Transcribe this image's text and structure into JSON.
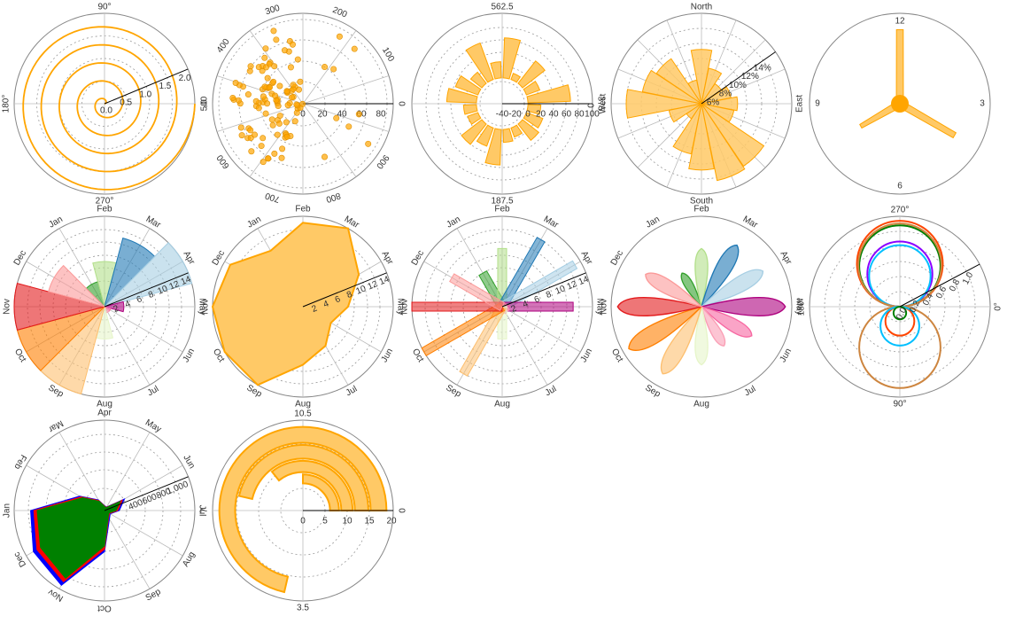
{
  "colors": {
    "orange": "#FFA500",
    "orange_fill": "#FFC966",
    "frame": "#888888",
    "grid": "#9A9A9A",
    "spoke": "#BBBBBB",
    "month_palette": [
      "#E31A1C",
      "#FB9A99",
      "#33A02C",
      "#B2DF8A",
      "#1F78B4",
      "#A6CEE3",
      "#AE017E",
      "#F768A1",
      "#FA9FB5",
      "#E6F5C9",
      "#FDBF6F",
      "#FF7F00"
    ]
  },
  "charts": [
    {
      "id": "spiral",
      "type": "line",
      "angle_labels": [
        "90°",
        "180°",
        "270°",
        "0°"
      ],
      "radial_ticks": [
        "0.0",
        "0.5",
        "1.0",
        "1.5",
        "2.0"
      ],
      "radial_max": 2.0,
      "series": [
        {
          "theta_deg_start": 0,
          "theta_deg_end": 1800,
          "r_start": 0.0,
          "r_end": 2.0
        }
      ]
    },
    {
      "id": "scatter",
      "type": "scatter",
      "angle_labels": [
        "100",
        "200",
        "300",
        "400",
        "500",
        "600",
        "700",
        "800",
        "900",
        "0"
      ],
      "radial_ticks": [
        "0",
        "20",
        "40",
        "60",
        "80"
      ],
      "radial_max": 90,
      "point_count": 110
    },
    {
      "id": "bars-donut",
      "type": "bar",
      "angle_labels": [
        "562.5",
        "375",
        "187.5",
        "0"
      ],
      "radial_ticks": [
        "-40",
        "-20",
        "0",
        "20",
        "40",
        "60",
        "80",
        "100"
      ],
      "radial_min": -40,
      "radial_max": 100,
      "values": [
        62,
        10,
        44,
        22,
        66,
        20,
        27,
        32,
        15,
        20,
        55,
        30,
        40,
        17,
        20,
        46,
        37,
        22,
        60,
        25
      ]
    },
    {
      "id": "wind-rose",
      "type": "bar",
      "angle_labels": [
        "North",
        "East",
        "South",
        "West"
      ],
      "radial_ticks": [
        "6%",
        "8%",
        "10%",
        "12%",
        "14%"
      ],
      "radial_max": 15,
      "sectors": [
        {
          "direction": 0,
          "value": 9
        },
        {
          "direction": 22.5,
          "value": 6
        },
        {
          "direction": 45,
          "value": 4
        },
        {
          "direction": 67.5,
          "value": 5
        },
        {
          "direction": 90,
          "value": 6
        },
        {
          "direction": 112.5,
          "value": 5.5
        },
        {
          "direction": 135,
          "value": 12.5
        },
        {
          "direction": 157.5,
          "value": 13
        },
        {
          "direction": 180,
          "value": 11
        },
        {
          "direction": 202.5,
          "value": 8.5
        },
        {
          "direction": 225,
          "value": 3
        },
        {
          "direction": 247.5,
          "value": 5.5
        },
        {
          "direction": 270,
          "value": 12.5
        },
        {
          "direction": 292.5,
          "value": 10
        },
        {
          "direction": 315,
          "value": 9
        },
        {
          "direction": 337.5,
          "value": 4
        }
      ]
    },
    {
      "id": "clock",
      "type": "bar",
      "angle_labels": [
        "12",
        "3",
        "6",
        "9"
      ],
      "hands": [
        {
          "hour": 0,
          "length": 0.82
        },
        {
          "hour": 4,
          "length": 0.7
        },
        {
          "hour": 8,
          "length": 0.5
        }
      ]
    },
    {
      "id": "months-bars",
      "type": "bar",
      "angle_labels": [
        "Jan",
        "Feb",
        "Mar",
        "Apr",
        "May",
        "Jun",
        "Jul",
        "Aug",
        "Sep",
        "Oct",
        "Nov",
        "Dec"
      ],
      "radial_ticks": [
        "2",
        "4",
        "6",
        "8",
        "10",
        "12",
        "14"
      ],
      "radial_max": 14,
      "values": [
        4,
        7,
        11,
        14,
        3,
        1,
        1,
        5,
        14,
        14,
        14,
        9
      ]
    },
    {
      "id": "months-area",
      "type": "area",
      "angle_labels": [
        "Jan",
        "Feb",
        "Mar",
        "Apr",
        "May",
        "Jun",
        "Jul",
        "Aug",
        "Sep",
        "Oct",
        "Nov",
        "Dec"
      ],
      "radial_ticks": [
        "2",
        "4",
        "6",
        "8",
        "10",
        "12",
        "14"
      ],
      "radial_max": 14,
      "values": [
        10,
        13,
        14,
        10,
        7,
        5,
        7,
        9,
        14,
        14,
        14,
        13
      ]
    },
    {
      "id": "months-thin",
      "type": "bar",
      "angle_labels": [
        "Jan",
        "Feb",
        "Mar",
        "Apr",
        "May",
        "Jun",
        "Jul",
        "Aug",
        "Sep",
        "Oct",
        "Nov",
        "Dec"
      ],
      "radial_ticks": [
        "2",
        "4",
        "6",
        "8",
        "10",
        "12",
        "14"
      ],
      "radial_max": 14,
      "values": [
        6,
        9,
        12,
        13,
        11,
        1,
        1,
        5,
        12,
        14,
        14,
        9
      ]
    },
    {
      "id": "months-petals",
      "type": "area",
      "angle_labels": [
        "Jan",
        "Feb",
        "Mar",
        "Apr",
        "May",
        "Jun",
        "Jul",
        "Aug",
        "Sep",
        "Oct",
        "Nov",
        "Dec"
      ],
      "radial_max": 14,
      "values": [
        6,
        9,
        11,
        11,
        13,
        9,
        7,
        9,
        12,
        13,
        13,
        10
      ]
    },
    {
      "id": "curves",
      "type": "line",
      "angle_labels": [
        "270°",
        "0°",
        "90°",
        "180°"
      ],
      "radial_ticks": [
        "0.0",
        "0.2",
        "0.4",
        "0.6",
        "0.8",
        "1.0"
      ],
      "radial_max": 1.0,
      "series": [
        {
          "color": "#FF4500",
          "kind": "cardioid-top",
          "scale": 0.95
        },
        {
          "color": "#8B00FF",
          "kind": "circle-top",
          "scale": 0.72
        },
        {
          "color": "#008000",
          "kind": "circle-top",
          "scale": 0.9
        },
        {
          "color": "#00BFFF",
          "kind": "circle-top",
          "scale": 0.68
        },
        {
          "color": "#CD853F",
          "kind": "circle-top",
          "scale": 0.92
        },
        {
          "color": "#FF4500",
          "kind": "circle-bottom",
          "scale": 0.32
        },
        {
          "color": "#CD853F",
          "kind": "circle-bottom",
          "scale": 0.9
        },
        {
          "color": "#00BFFF",
          "kind": "circle-bottom",
          "scale": 0.43
        },
        {
          "color": "#008000",
          "kind": "circle-bottom",
          "scale": 0.14
        }
      ]
    },
    {
      "id": "stacked-months",
      "type": "area",
      "angle_labels": [
        "Jan",
        "Feb",
        "Mar",
        "Apr",
        "May",
        "Jun",
        "Jul",
        "Aug",
        "Sep",
        "Oct",
        "Nov",
        "Dec"
      ],
      "radial_ticks": [
        "400",
        "600",
        "800",
        "1,000"
      ],
      "radial_max": 1100,
      "series": [
        {
          "color": "#0000FF",
          "values": [
            1000,
            900,
            350,
            150,
            60,
            50,
            280,
            180,
            80,
            120,
            500,
            1050
          ]
        },
        {
          "color": "#FF0000",
          "values": [
            950,
            860,
            330,
            140,
            55,
            45,
            250,
            160,
            70,
            100,
            470,
            1000
          ]
        },
        {
          "color": "#008000",
          "values": [
            900,
            820,
            310,
            130,
            50,
            40,
            220,
            140,
            60,
            90,
            430,
            950
          ]
        }
      ]
    },
    {
      "id": "arcs",
      "type": "bar",
      "angle_labels": [
        "10.5",
        "0",
        "3.5",
        "7"
      ],
      "radial_ticks": [
        "0",
        "5",
        "10",
        "15",
        "20"
      ],
      "radial_max": 20,
      "arcs": [
        {
          "start": 0.0,
          "end": 10.0,
          "r0": 15,
          "r1": 18.5
        },
        {
          "start": 0.0,
          "end": 6.5,
          "r0": 11.5,
          "r1": 14.5
        },
        {
          "start": 0.0,
          "end": 5.0,
          "r0": 8.5,
          "r1": 11.0
        },
        {
          "start": 0.0,
          "end": 3.5,
          "r0": 6.0,
          "r1": 8.0
        }
      ]
    }
  ]
}
